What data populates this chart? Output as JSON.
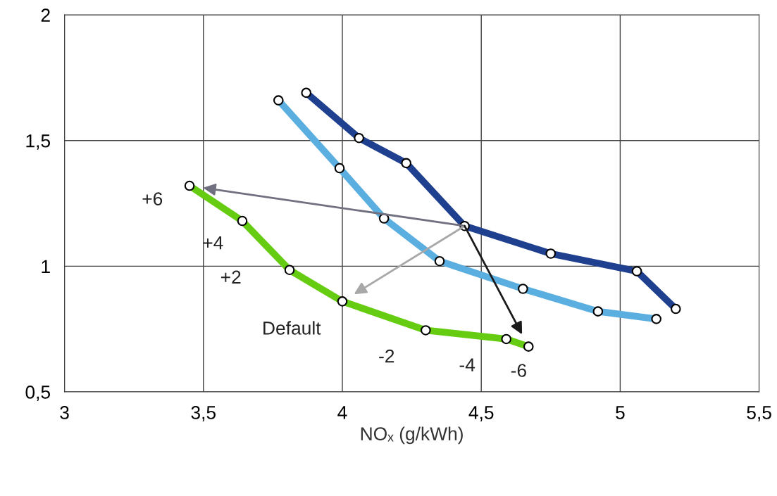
{
  "chart_data": {
    "type": "line",
    "xlabel": "NOₓ (g/kWh)",
    "xlim": [
      3,
      5.5
    ],
    "ylim": [
      0.5,
      2
    ],
    "xticks": [
      3,
      {
        "value": 3.5,
        "label": "3,5"
      },
      4,
      {
        "value": 4.5,
        "label": "4,5"
      },
      5,
      {
        "value": 5.5,
        "label": "5,5"
      }
    ],
    "yticks": [
      {
        "value": 0.5,
        "label": "0,5"
      },
      1,
      {
        "value": 1.5,
        "label": "1,5"
      },
      2
    ],
    "grid": true,
    "marker": "circle",
    "line_style": "solid",
    "series": [
      {
        "color": "#1f3f8f",
        "x": [
          3.87,
          4.06,
          4.23,
          4.44,
          4.75,
          5.06,
          5.2
        ],
        "values": [
          1.69,
          1.51,
          1.41,
          1.16,
          1.05,
          0.98,
          0.83
        ]
      },
      {
        "color": "#5aaee0",
        "x": [
          3.77,
          3.99,
          4.15,
          4.35,
          4.65,
          4.92,
          5.13
        ],
        "values": [
          1.66,
          1.39,
          1.19,
          1.02,
          0.91,
          0.82,
          0.79
        ]
      },
      {
        "color": "#66cc11",
        "x": [
          3.45,
          3.64,
          3.81,
          4.0,
          4.3,
          4.59,
          4.67
        ],
        "values": [
          1.32,
          1.18,
          0.985,
          0.86,
          0.745,
          0.71,
          0.68
        ]
      }
    ],
    "annotations": [
      {
        "text": "+6",
        "x": 3.45,
        "y": 1.32
      },
      {
        "text": "+4",
        "x": 3.64,
        "y": 1.18
      },
      {
        "text": "+2",
        "x": 3.81,
        "y": 0.985
      },
      {
        "text": "Default",
        "x": 4.0,
        "y": 0.86
      },
      {
        "text": "-2",
        "x": 4.3,
        "y": 0.745
      },
      {
        "text": "-4",
        "x": 4.59,
        "y": 0.71
      },
      {
        "text": "-6",
        "x": 4.67,
        "y": 0.68
      }
    ]
  }
}
